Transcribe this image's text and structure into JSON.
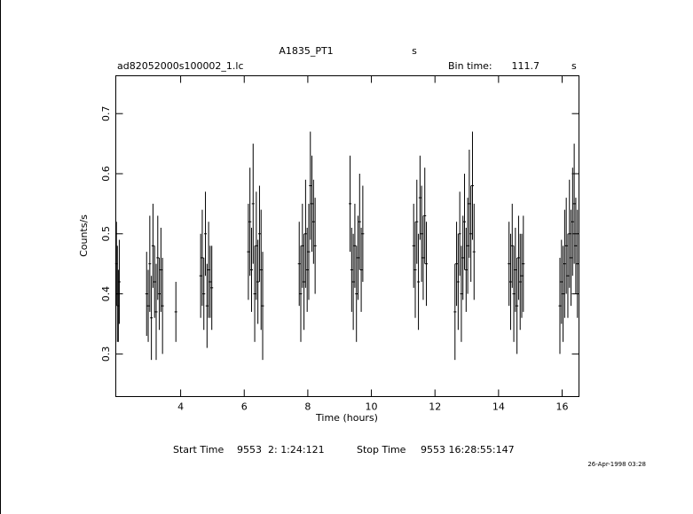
{
  "chart_data": {
    "type": "errorbar",
    "title": "A1835_PT1",
    "title_unit": "s",
    "subtitle": "ad82052000s100002_1.lc",
    "bin_time_label": "Bin time:",
    "bin_time": 111.7,
    "bin_time_unit": "s",
    "xlabel": "Time (hours)",
    "ylabel": "Counts/s",
    "start_label": "Start Time",
    "start_value": "9553  2: 1:24:121",
    "stop_label": "Stop Time",
    "stop_value": "9553 16:28:55:147",
    "date": "26-Apr-1998 03:28",
    "color": "#000000",
    "xlim": [
      1.96,
      16.53
    ],
    "ylim": [
      0.229,
      0.763
    ],
    "xticks": [
      4,
      6,
      8,
      10,
      12,
      14,
      16
    ],
    "yticks": [
      0.3,
      0.4,
      0.5,
      0.6,
      0.7
    ],
    "x": [
      1.98,
      2.01,
      2.04,
      2.07,
      2.93,
      2.98,
      3.03,
      3.08,
      3.13,
      3.18,
      3.23,
      3.28,
      3.33,
      3.38,
      3.43,
      3.85,
      4.63,
      4.68,
      4.73,
      4.78,
      4.83,
      4.88,
      4.93,
      4.98,
      6.13,
      6.18,
      6.23,
      6.28,
      6.33,
      6.38,
      6.43,
      6.48,
      6.53,
      6.58,
      7.73,
      7.78,
      7.83,
      7.88,
      7.93,
      7.98,
      8.03,
      8.08,
      8.13,
      8.18,
      8.23,
      9.33,
      9.38,
      9.43,
      9.48,
      9.53,
      9.58,
      9.63,
      9.68,
      9.73,
      11.33,
      11.38,
      11.43,
      11.48,
      11.53,
      11.58,
      11.63,
      11.68,
      11.73,
      12.63,
      12.68,
      12.73,
      12.78,
      12.83,
      12.88,
      12.93,
      12.98,
      13.03,
      13.08,
      13.13,
      13.18,
      13.23,
      14.33,
      14.38,
      14.43,
      14.48,
      14.53,
      14.58,
      14.63,
      14.68,
      14.73,
      14.78,
      15.93,
      15.98,
      16.03,
      16.08,
      16.13,
      16.18,
      16.23,
      16.28,
      16.33,
      16.38,
      16.43,
      16.48
    ],
    "values": [
      0.45,
      0.4,
      0.38,
      0.42,
      0.4,
      0.38,
      0.45,
      0.36,
      0.48,
      0.42,
      0.37,
      0.46,
      0.4,
      0.44,
      0.38,
      0.37,
      0.43,
      0.46,
      0.4,
      0.5,
      0.38,
      0.44,
      0.42,
      0.41,
      0.47,
      0.52,
      0.44,
      0.55,
      0.4,
      0.48,
      0.42,
      0.5,
      0.44,
      0.38,
      0.45,
      0.4,
      0.48,
      0.42,
      0.5,
      0.44,
      0.47,
      0.58,
      0.55,
      0.52,
      0.48,
      0.55,
      0.44,
      0.42,
      0.48,
      0.4,
      0.46,
      0.52,
      0.44,
      0.5,
      0.48,
      0.44,
      0.52,
      0.42,
      0.56,
      0.5,
      0.46,
      0.53,
      0.45,
      0.37,
      0.45,
      0.42,
      0.5,
      0.4,
      0.46,
      0.52,
      0.44,
      0.48,
      0.55,
      0.5,
      0.58,
      0.47,
      0.45,
      0.42,
      0.48,
      0.4,
      0.44,
      0.38,
      0.46,
      0.42,
      0.43,
      0.45,
      0.38,
      0.42,
      0.4,
      0.45,
      0.48,
      0.43,
      0.5,
      0.46,
      0.52,
      0.55,
      0.48,
      0.45
    ],
    "errors": [
      0.07,
      0.08,
      0.06,
      0.07,
      0.07,
      0.06,
      0.08,
      0.07,
      0.07,
      0.06,
      0.08,
      0.07,
      0.06,
      0.07,
      0.08,
      0.05,
      0.07,
      0.08,
      0.06,
      0.07,
      0.07,
      0.08,
      0.06,
      0.07,
      0.08,
      0.09,
      0.07,
      0.1,
      0.08,
      0.09,
      0.07,
      0.08,
      0.1,
      0.09,
      0.07,
      0.08,
      0.07,
      0.08,
      0.09,
      0.07,
      0.08,
      0.09,
      0.08,
      0.07,
      0.08,
      0.08,
      0.07,
      0.08,
      0.07,
      0.08,
      0.07,
      0.08,
      0.07,
      0.08,
      0.07,
      0.08,
      0.07,
      0.08,
      0.07,
      0.08,
      0.07,
      0.08,
      0.07,
      0.08,
      0.07,
      0.08,
      0.07,
      0.08,
      0.07,
      0.08,
      0.07,
      0.08,
      0.09,
      0.08,
      0.09,
      0.08,
      0.07,
      0.08,
      0.07,
      0.08,
      0.07,
      0.08,
      0.07,
      0.08,
      0.07,
      0.08,
      0.08,
      0.07,
      0.08,
      0.09,
      0.08,
      0.07,
      0.09,
      0.08,
      0.09,
      0.1,
      0.08,
      0.09
    ]
  }
}
